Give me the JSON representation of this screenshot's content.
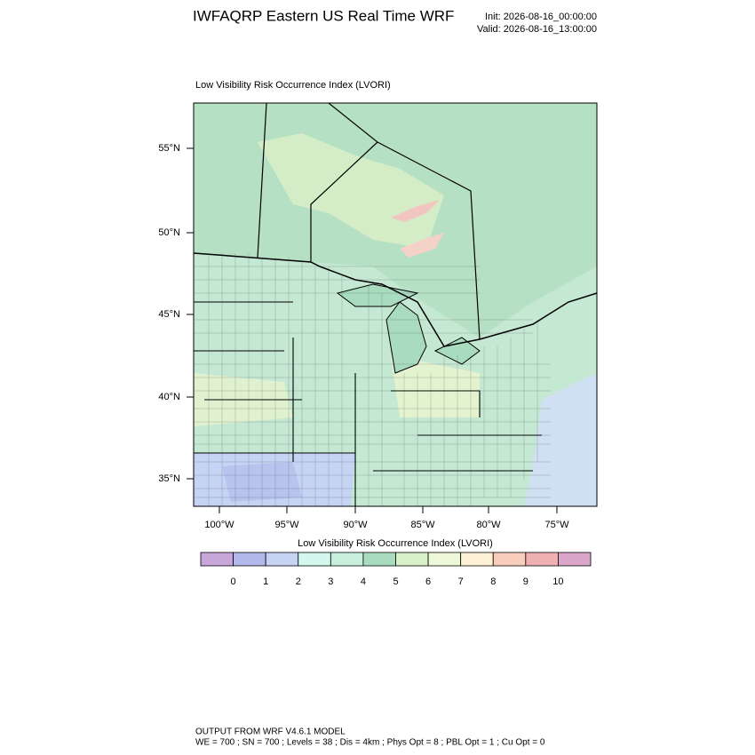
{
  "header": {
    "title": "IWFAQRP Eastern US Real Time WRF",
    "init": "Init: 2026-08-16_00:00:00",
    "valid": "Valid: 2026-08-16_13:00:00"
  },
  "map": {
    "title": "Low Visibility Risk Occurrence Index   (LVORI)",
    "lat_labels": [
      "55°N",
      "50°N",
      "45°N",
      "40°N",
      "35°N"
    ],
    "lon_labels": [
      "100°W",
      "95°W",
      "90°W",
      "85°W",
      "80°W",
      "75°W"
    ]
  },
  "colorbar": {
    "title": "Low Visibility Risk Occurrence Index  (LVORI)",
    "colors": [
      "#c9a6d9",
      "#b3b8ea",
      "#c6d4f4",
      "#d4f7ee",
      "#c8eedc",
      "#a9dbbf",
      "#d9f0c8",
      "#eef8d8",
      "#fdf0d5",
      "#f9cdbb",
      "#eeb0b0",
      "#d9a6c9"
    ],
    "labels": [
      0,
      1,
      2,
      3,
      4,
      5,
      6,
      7,
      8,
      9,
      10
    ]
  },
  "footer": {
    "line1": "OUTPUT FROM WRF V4.6.1 MODEL",
    "line2": "WE = 700 ; SN = 700 ; Levels = 38 ; Dis = 4km ; Phys Opt = 8 ; PBL Opt = 1 ; Cu Opt = 0"
  }
}
